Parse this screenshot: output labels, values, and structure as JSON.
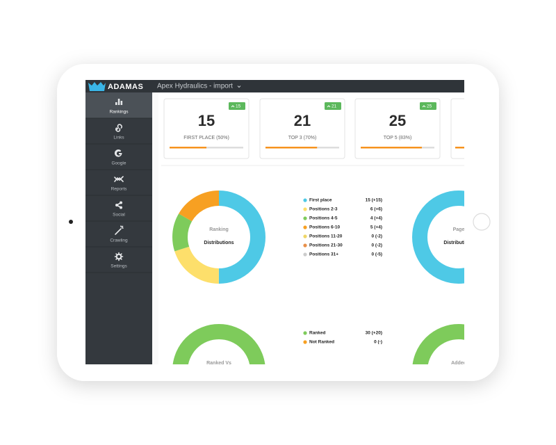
{
  "brand": "ADAMAS",
  "project": "Apex Hydraulics - import",
  "sidebar": [
    "Rankings",
    "Links",
    "Google",
    "Reports",
    "Social",
    "Crawling",
    "Settings"
  ],
  "cards": [
    {
      "value": 15,
      "label": "FIRST PLACE (50%)",
      "badge": 15,
      "progress": 50
    },
    {
      "value": 21,
      "label": "TOP 3 (70%)",
      "badge": 21,
      "progress": 70
    },
    {
      "value": 25,
      "label": "TOP 5 (83%)",
      "badge": 25,
      "progress": 83
    }
  ],
  "charts": [
    {
      "type": "donut",
      "title": [
        "Ranking",
        "Distributions"
      ],
      "categories": [
        "First place",
        "Positions 2-3",
        "Positions 4-5",
        "Positions 6-10",
        "Positions 11-20",
        "Positions 21-30",
        "Positions 31+"
      ],
      "values": [
        15,
        6,
        4,
        5,
        0,
        0,
        0
      ],
      "value_labels": [
        "15 (+15)",
        "6 (+6)",
        "4 (+4)",
        "5 (+4)",
        "0 (-2)",
        "0 (-2)",
        "0 (-5)"
      ],
      "colors": [
        "#4ec9e6",
        "#fddf6b",
        "#7ecb5b",
        "#f7a022",
        "#efd667",
        "#e8904a",
        "#cccccc"
      ]
    },
    {
      "type": "donut",
      "title": [
        "Ranked Vs"
      ],
      "categories": [
        "Ranked",
        "Not Ranked"
      ],
      "values": [
        30,
        0
      ],
      "value_labels": [
        "30 (+20)",
        "0 (-)"
      ],
      "colors": [
        "#7ecb5b",
        "#f7a022"
      ]
    }
  ],
  "partial_panels": [
    {
      "title": [
        "Page",
        "Distributions"
      ],
      "color": "#4ec9e6"
    },
    {
      "title": [
        "Added"
      ],
      "color": "#7ecb5b"
    }
  ]
}
